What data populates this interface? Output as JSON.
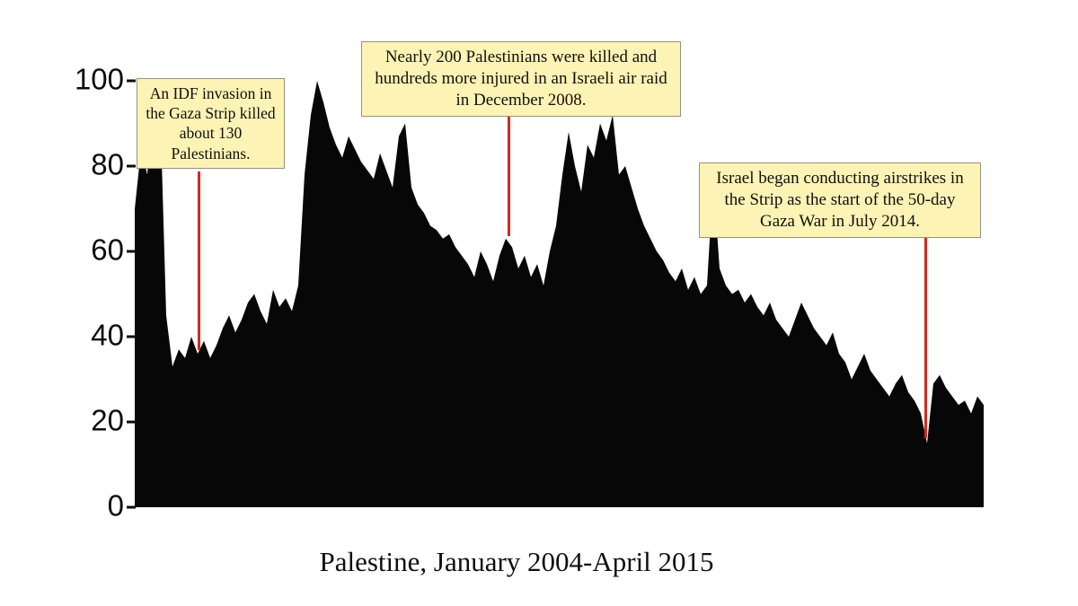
{
  "chart_data": {
    "type": "area",
    "title": "Palestine, January 2004-April 2015",
    "x_start": "January 2004",
    "x_end": "April 2015",
    "x_unit": "month",
    "x_axis_labels_visible": false,
    "ylim": [
      0,
      100
    ],
    "yticks": [
      100,
      80,
      60,
      40,
      20,
      0
    ],
    "ytick_labels": [
      "100",
      "80",
      "60",
      "40",
      "20",
      "0"
    ],
    "grid": false,
    "legend": false,
    "area_color": "#070707",
    "background_color": "#ffffff",
    "annotation_box_color": "#fcf3b4",
    "annotation_line_color": "#d02a20",
    "values": [
      70,
      84,
      78,
      100,
      96,
      45,
      33,
      37,
      35,
      40,
      36,
      39,
      35,
      38,
      42,
      45,
      41,
      44,
      48,
      50,
      46,
      43,
      51,
      47,
      49,
      46,
      52,
      78,
      92,
      100,
      95,
      89,
      85,
      82,
      87,
      84,
      81,
      79,
      77,
      83,
      79,
      75,
      87,
      90,
      75,
      71,
      69,
      66,
      65,
      63,
      64,
      61,
      59,
      57,
      54,
      60,
      57,
      53,
      59,
      63,
      61,
      56,
      59,
      54,
      57,
      52,
      60,
      66,
      78,
      88,
      80,
      74,
      85,
      82,
      90,
      86,
      92,
      78,
      80,
      75,
      70,
      66,
      63,
      60,
      58,
      55,
      53,
      56,
      51,
      54,
      50,
      52,
      77,
      56,
      52,
      50,
      51,
      48,
      50,
      47,
      45,
      48,
      44,
      42,
      40,
      44,
      48,
      45,
      42,
      40,
      38,
      41,
      36,
      34,
      30,
      33,
      36,
      32,
      30,
      28,
      26,
      29,
      31,
      27,
      25,
      22,
      15,
      29,
      31,
      28,
      26,
      24,
      25,
      22,
      26,
      24
    ],
    "annotations": [
      {
        "text": "An IDF invasion in the Gaza Strip killed about 130 Palestinians.",
        "pointer_value": 37
      },
      {
        "text": "Nearly 200 Palestinians were killed and hundreds more injured in an Israeli air raid in December 2008.",
        "pointer_value": 62
      },
      {
        "text": "Israel began conducting airstrikes in the Strip as the start of the 50-day Gaza War in July 2014.",
        "pointer_value": 15
      }
    ]
  }
}
